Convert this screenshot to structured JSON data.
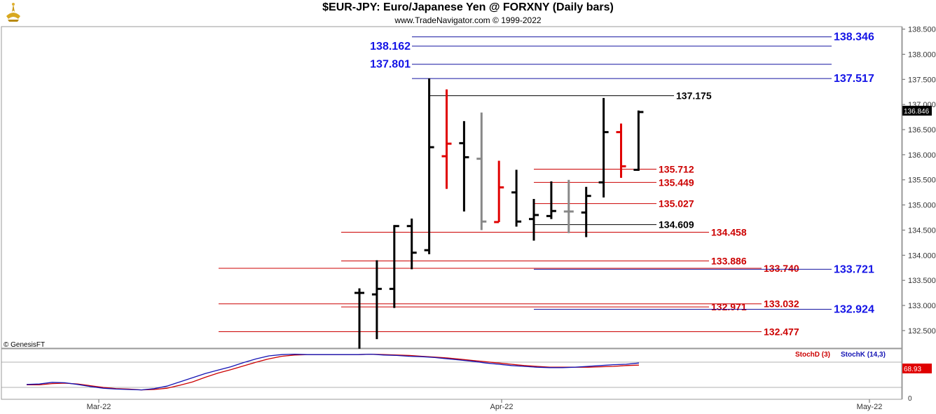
{
  "header": {
    "title": "$EUR-JPY:  Euro/Japanese Yen @ FORXNY  (Daily bars)",
    "subtitle": "www.TradeNavigator.com © 1999-2022"
  },
  "copyright": "© GenesisFT",
  "last_price_label": "136.846",
  "stoch_value_label": "68.93",
  "stoch_zero_label": "0",
  "colors": {
    "black": "#000000",
    "red": "#e00000",
    "gray": "#888888",
    "blue": "#1414e6",
    "level_red": "#cc0000",
    "level_blue": "#1414a0"
  },
  "chart_data": [
    {
      "type": "ohlc",
      "ylim": [
        132.15,
        138.55
      ],
      "y_ticks": [
        "132.500",
        "133.000",
        "133.500",
        "134.000",
        "134.500",
        "135.000",
        "135.500",
        "136.000",
        "136.500",
        "137.000",
        "137.500",
        "138.000",
        "138.500"
      ],
      "x_labels": [
        "Mar-22",
        "Apr-22",
        "May-22"
      ],
      "bars": [
        {
          "o": 133.25,
          "h": 133.34,
          "l": 132.14,
          "c": 133.25,
          "color": "black"
        },
        {
          "o": 133.22,
          "h": 133.9,
          "l": 132.33,
          "c": 133.33,
          "color": "black"
        },
        {
          "o": 133.33,
          "h": 134.6,
          "l": 132.95,
          "c": 134.58,
          "color": "black"
        },
        {
          "o": 134.58,
          "h": 134.73,
          "l": 133.72,
          "c": 134.05,
          "color": "black"
        },
        {
          "o": 134.1,
          "h": 137.52,
          "l": 134.02,
          "c": 136.15,
          "color": "black"
        },
        {
          "o": 135.97,
          "h": 137.3,
          "l": 135.32,
          "c": 136.22,
          "color": "red"
        },
        {
          "o": 136.23,
          "h": 136.67,
          "l": 134.87,
          "c": 135.95,
          "color": "black"
        },
        {
          "o": 135.92,
          "h": 136.84,
          "l": 134.5,
          "c": 134.67,
          "color": "gray"
        },
        {
          "o": 134.66,
          "h": 135.88,
          "l": 134.66,
          "c": 135.35,
          "color": "red"
        },
        {
          "o": 135.25,
          "h": 135.7,
          "l": 134.57,
          "c": 134.67,
          "color": "black"
        },
        {
          "o": 134.72,
          "h": 135.12,
          "l": 134.29,
          "c": 134.8,
          "color": "black"
        },
        {
          "o": 134.78,
          "h": 135.47,
          "l": 134.72,
          "c": 134.88,
          "color": "black"
        },
        {
          "o": 134.87,
          "h": 135.5,
          "l": 134.44,
          "c": 134.87,
          "color": "gray"
        },
        {
          "o": 134.85,
          "h": 135.36,
          "l": 134.36,
          "c": 135.18,
          "color": "black"
        },
        {
          "o": 135.45,
          "h": 137.13,
          "l": 135.15,
          "c": 136.45,
          "color": "black"
        },
        {
          "o": 136.45,
          "h": 136.62,
          "l": 135.54,
          "c": 135.77,
          "color": "red"
        },
        {
          "o": 135.7,
          "h": 136.88,
          "l": 135.68,
          "c": 136.85,
          "color": "black"
        }
      ],
      "levels": [
        {
          "value": 138.346,
          "label": "138.346",
          "color": "blue",
          "kind": "blue-right"
        },
        {
          "value": 138.162,
          "label": "138.162",
          "color": "blue",
          "kind": "blue-left"
        },
        {
          "value": 137.801,
          "label": "137.801",
          "color": "blue",
          "kind": "blue-left"
        },
        {
          "value": 137.517,
          "label": "137.517",
          "color": "blue",
          "kind": "blue-right"
        },
        {
          "value": 137.175,
          "label": "137.175",
          "color": "black",
          "kind": "black"
        },
        {
          "value": 135.712,
          "label": "135.712",
          "color": "red",
          "kind": "red-mid"
        },
        {
          "value": 135.449,
          "label": "135.449",
          "color": "red",
          "kind": "red-mid"
        },
        {
          "value": 135.027,
          "label": "135.027",
          "color": "red",
          "kind": "red-mid"
        },
        {
          "value": 134.609,
          "label": "134.609",
          "color": "black",
          "kind": "black-mid"
        },
        {
          "value": 134.458,
          "label": "134.458",
          "color": "red",
          "kind": "red-wide"
        },
        {
          "value": 133.886,
          "label": "133.886",
          "color": "red",
          "kind": "red-wide"
        },
        {
          "value": 133.74,
          "label": "133.740",
          "color": "red",
          "kind": "red-far"
        },
        {
          "value": 133.721,
          "label": "133.721",
          "color": "blue",
          "kind": "blue-right-mid"
        },
        {
          "value": 133.032,
          "label": "133.032",
          "color": "red",
          "kind": "red-far"
        },
        {
          "value": 132.971,
          "label": "132.971",
          "color": "red",
          "kind": "red-wide"
        },
        {
          "value": 132.924,
          "label": "132.924",
          "color": "blue",
          "kind": "blue-right-mid"
        },
        {
          "value": 132.477,
          "label": "132.477",
          "color": "red",
          "kind": "red-far"
        }
      ]
    },
    {
      "type": "line",
      "legend": [
        "StochD (3)",
        "StochK (14,3)"
      ],
      "ylim": [
        0,
        100
      ],
      "x_labels": [
        "Mar-22",
        "Apr-22",
        "May-22"
      ],
      "series": [
        {
          "name": "StochD (3)",
          "color": "#cc0000",
          "values": [
            26,
            26,
            29,
            30,
            28,
            24,
            20,
            17,
            16,
            14,
            15,
            18,
            25,
            33,
            44,
            54,
            62,
            71,
            80,
            88,
            94,
            97,
            98,
            98,
            98,
            98,
            98,
            99,
            98,
            97,
            96,
            94,
            92,
            90,
            87,
            84,
            81,
            78,
            75,
            72,
            70,
            68,
            68,
            68,
            68,
            69,
            70,
            72,
            73
          ]
        },
        {
          "name": "StochK (14,3)",
          "color": "#1414b4",
          "values": [
            27,
            28,
            32,
            31,
            27,
            22,
            18,
            16,
            15,
            14,
            17,
            23,
            33,
            43,
            53,
            61,
            69,
            79,
            88,
            95,
            98,
            99,
            98,
            98,
            98,
            98,
            98,
            99,
            97,
            96,
            94,
            93,
            91,
            88,
            85,
            82,
            78,
            75,
            72,
            70,
            68,
            67,
            67,
            68,
            70,
            72,
            74,
            75,
            78
          ]
        }
      ]
    }
  ]
}
